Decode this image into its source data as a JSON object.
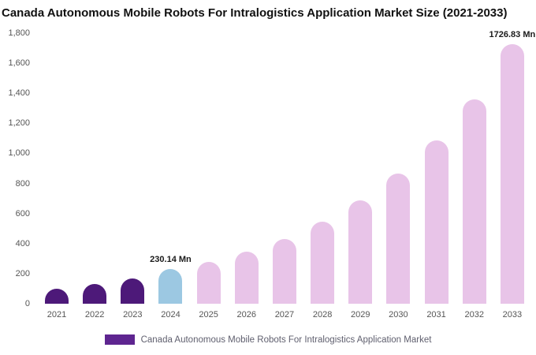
{
  "title": "Canada Autonomous Mobile Robots For Intralogistics Application Market Size (2021-2033)",
  "legend": {
    "label": "Canada Autonomous Mobile Robots For Intralogistics Application Market",
    "swatch_color": "#5e2590"
  },
  "colors": {
    "historical_bar": "#4d1979",
    "base_year_bar": "#9cc8e2",
    "forecast_bar": "#e8c4e8",
    "axis_text": "#555555",
    "annotation_text": "#1a1a1a"
  },
  "chart_data": {
    "type": "bar",
    "title": "Canada Autonomous Mobile Robots For Intralogistics Application Market Size (2021-2033)",
    "xlabel": "",
    "ylabel": "",
    "units": "Mn",
    "categories": [
      "2021",
      "2022",
      "2023",
      "2024",
      "2025",
      "2026",
      "2027",
      "2028",
      "2029",
      "2030",
      "2031",
      "2032",
      "2033"
    ],
    "values": [
      100,
      130,
      170,
      230.14,
      280,
      345,
      430,
      545,
      685,
      865,
      1085,
      1360,
      1726.83
    ],
    "bar_colors": [
      "#4d1979",
      "#4d1979",
      "#4d1979",
      "#9cc8e2",
      "#e8c4e8",
      "#e8c4e8",
      "#e8c4e8",
      "#e8c4e8",
      "#e8c4e8",
      "#e8c4e8",
      "#e8c4e8",
      "#e8c4e8",
      "#e8c4e8"
    ],
    "annotations": [
      {
        "index": 3,
        "text": "230.14 Mn"
      },
      {
        "index": 12,
        "text": "1726.83 Mn"
      }
    ],
    "ylim": [
      0,
      1800
    ],
    "ytick_step": 200,
    "ytick_labels": [
      "0",
      "200",
      "400",
      "600",
      "800",
      "1,000",
      "1,200",
      "1,400",
      "1,600",
      "1,800"
    ],
    "grid": false,
    "legend_position": "bottom"
  }
}
